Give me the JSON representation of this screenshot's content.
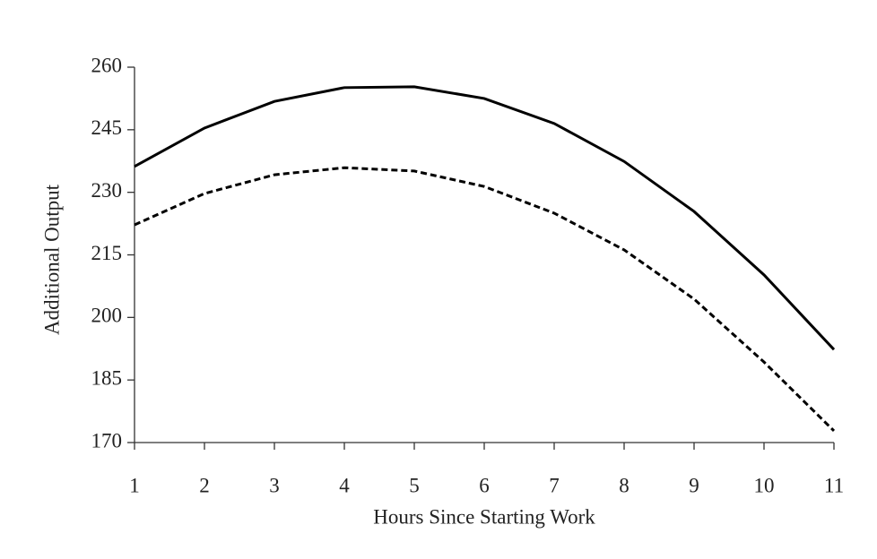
{
  "chart_data": {
    "type": "line",
    "x_label": "Hours Since Starting Work",
    "y_label": "Additional Output",
    "x": [
      1,
      2,
      3,
      4,
      5,
      6,
      7,
      8,
      9,
      10,
      11
    ],
    "series": [
      {
        "color": "#000000",
        "dash": "solid",
        "values": [
          236.2,
          245.4,
          251.8,
          255.1,
          255.3,
          252.5,
          246.5,
          237.4,
          225.4,
          210.2,
          192.3
        ]
      },
      {
        "color": "#000000",
        "dash": "dashed",
        "values": [
          222.2,
          229.7,
          234.2,
          235.9,
          235.1,
          231.4,
          225.0,
          216.2,
          204.4,
          189.3,
          172.8
        ]
      }
    ],
    "xlim": [
      1,
      11
    ],
    "xticks": [
      1,
      2,
      3,
      4,
      5,
      6,
      7,
      8,
      9,
      10,
      11
    ],
    "ylim": [
      170,
      260
    ],
    "yticks": [
      170,
      185,
      200,
      215,
      230,
      245,
      260
    ],
    "grid": false
  }
}
